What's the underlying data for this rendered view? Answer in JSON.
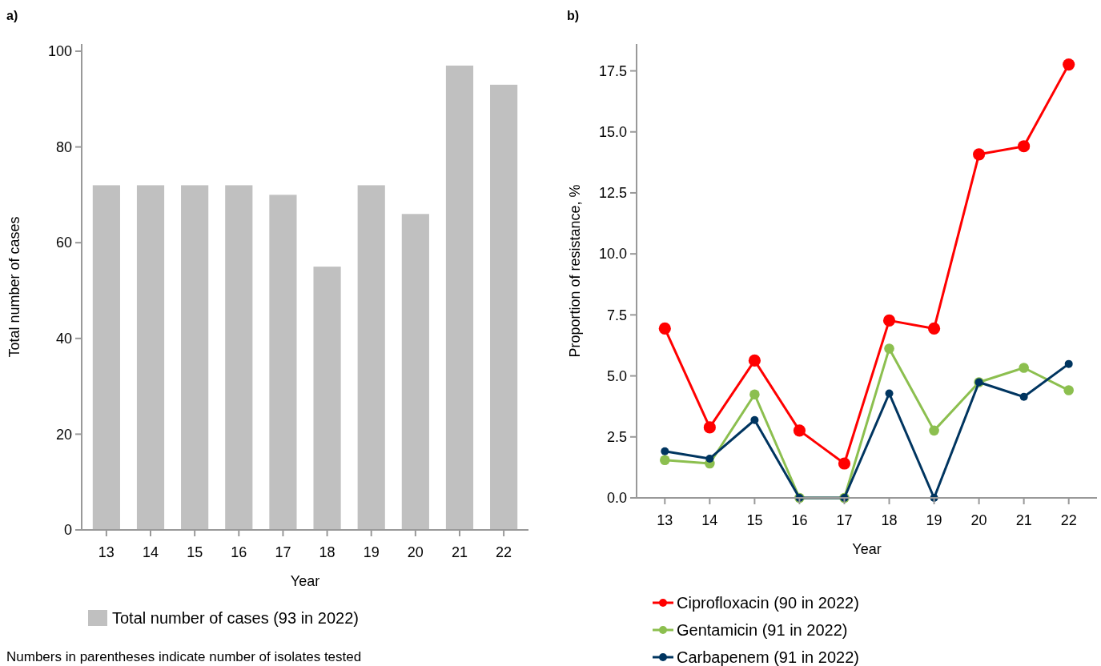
{
  "chart_data": [
    {
      "type": "bar",
      "title": "a)",
      "xlabel": "Year",
      "ylabel": "Total number of cases",
      "categories": [
        "13",
        "14",
        "15",
        "16",
        "17",
        "18",
        "19",
        "20",
        "21",
        "22"
      ],
      "series": [
        {
          "name": "Total number of cases (93 in 2022)",
          "color": "#c0c0c0",
          "values": [
            72,
            72,
            72,
            72,
            70,
            55,
            72,
            66,
            97,
            93
          ]
        }
      ],
      "ylim": [
        0,
        101.5
      ],
      "yticks": [
        0,
        20,
        40,
        60,
        80,
        100
      ],
      "grid": false,
      "legend": "bottom",
      "annotations": [
        "Numbers in parentheses indicate number of isolates tested"
      ]
    },
    {
      "type": "line",
      "title": "b)",
      "xlabel": "Year",
      "ylabel": "Proportion of resistance, %",
      "categories": [
        "13",
        "14",
        "15",
        "16",
        "17",
        "18",
        "19",
        "20",
        "21",
        "22"
      ],
      "series": [
        {
          "name": "Ciprofloxacin (90 in 2022)",
          "color": "#ff0000",
          "values": [
            6.94,
            2.89,
            5.63,
            2.76,
            1.41,
            7.27,
            6.94,
            14.08,
            14.41,
            17.76
          ]
        },
        {
          "name": "Gentamicin (91 in 2022)",
          "color": "#8cbf4f",
          "values": [
            1.55,
            1.41,
            4.24,
            0,
            0,
            6.12,
            2.76,
            4.74,
            5.33,
            4.41
          ]
        },
        {
          "name": "Carbapenem (91 in 2022)",
          "color": "#003560",
          "values": [
            1.91,
            1.61,
            3.19,
            0,
            0,
            4.28,
            0,
            4.74,
            4.14,
            5.49
          ]
        }
      ],
      "ylim": [
        0,
        18.6
      ],
      "yticks": [
        {
          "value": 0,
          "label": "0.0"
        },
        {
          "value": 2.5,
          "label": "2.5"
        },
        {
          "value": 5,
          "label": "5.0"
        },
        {
          "value": 7.5,
          "label": "7.5"
        },
        {
          "value": 10,
          "label": "10.0"
        },
        {
          "value": 12.5,
          "label": "12.5"
        },
        {
          "value": 15,
          "label": "15.0"
        },
        {
          "value": 17.5,
          "label": "17.5"
        }
      ],
      "grid": false,
      "legend": "bottom",
      "marker": "circle",
      "line_style": "solid"
    }
  ]
}
